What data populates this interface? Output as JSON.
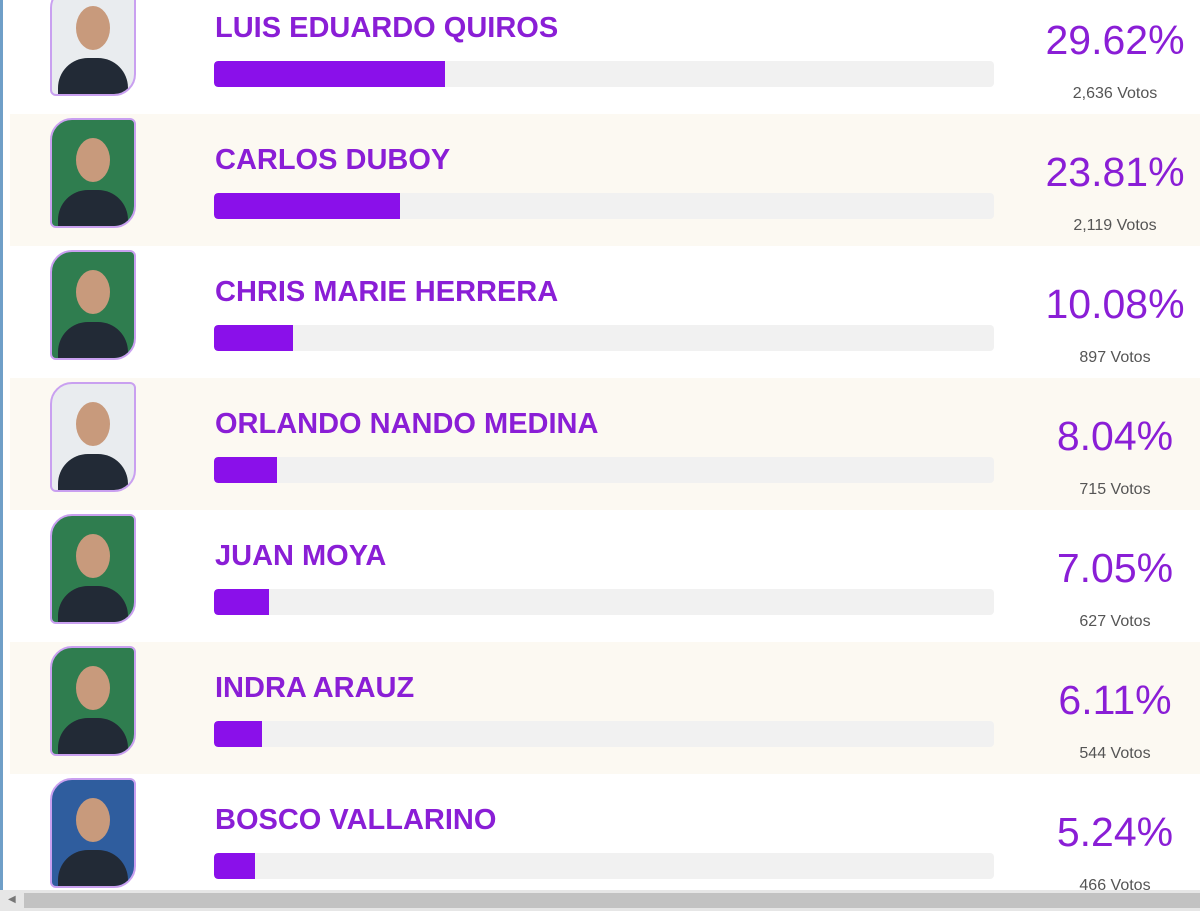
{
  "candidates": [
    {
      "name": "LUIS EDUARDO QUIROS",
      "percent": 29.62,
      "percent_label": "29.62%",
      "votes_label": "2,636 Votos"
    },
    {
      "name": "CARLOS DUBOY",
      "percent": 23.81,
      "percent_label": "23.81%",
      "votes_label": "2,119 Votos"
    },
    {
      "name": "CHRIS MARIE HERRERA",
      "percent": 10.08,
      "percent_label": "10.08%",
      "votes_label": "897 Votos"
    },
    {
      "name": "ORLANDO NANDO MEDINA",
      "percent": 8.04,
      "percent_label": "8.04%",
      "votes_label": "715 Votos"
    },
    {
      "name": "JUAN MOYA",
      "percent": 7.05,
      "percent_label": "7.05%",
      "votes_label": "627 Votos"
    },
    {
      "name": "INDRA ARAUZ",
      "percent": 6.11,
      "percent_label": "6.11%",
      "votes_label": "544 Votos"
    },
    {
      "name": "BOSCO VALLARINO",
      "percent": 5.24,
      "percent_label": "5.24%",
      "votes_label": "466 Votos"
    }
  ]
}
